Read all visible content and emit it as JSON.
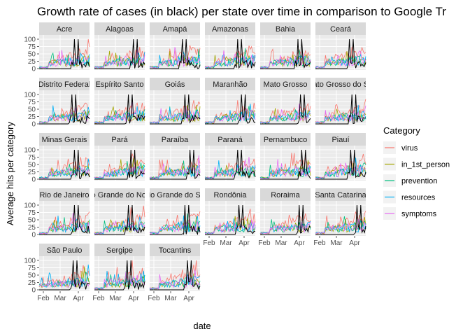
{
  "chart_data": {
    "type": "line",
    "title": "Growth rate of cases (in black) per state over time in comparison to Google Tr",
    "xlabel": "date",
    "ylabel": "Average hits per category",
    "x_ticks": [
      "Feb",
      "Mar",
      "Apr"
    ],
    "y_ticks": [
      "0",
      "25",
      "50",
      "75",
      "100"
    ],
    "ylim": [
      0,
      100
    ],
    "grid": true,
    "panel_background": "#ebebeb",
    "strip_background": "#d9d9d9",
    "facets": [
      "Acre",
      "Alagoas",
      "Amapá",
      "Amazonas",
      "Bahia",
      "Ceará",
      "Distrito Federal",
      "Espírito Santo",
      "Goiás",
      "Maranhão",
      "Mato Grosso",
      "Mato Grosso do Sul",
      "Minas Gerais",
      "Pará",
      "Paraíba",
      "Paraná",
      "Pernambuco",
      "Piauí",
      "Rio de Janeiro",
      "Rio Grande do Norte",
      "Rio Grande do Sul",
      "Rondônia",
      "Roraima",
      "Santa Catarina",
      "São Paulo",
      "Sergipe",
      "Tocantins"
    ],
    "case_series": {
      "name": "cases",
      "color": "#000000"
    },
    "legend": {
      "title": "Category",
      "placement": "right",
      "items": [
        {
          "name": "virus",
          "color": "#F8766D"
        },
        {
          "name": "in_1st_person",
          "color": "#A3A500"
        },
        {
          "name": "prevention",
          "color": "#00BF7D"
        },
        {
          "name": "resources",
          "color": "#00B0F6"
        },
        {
          "name": "symptoms",
          "color": "#E76BF3"
        }
      ]
    }
  }
}
